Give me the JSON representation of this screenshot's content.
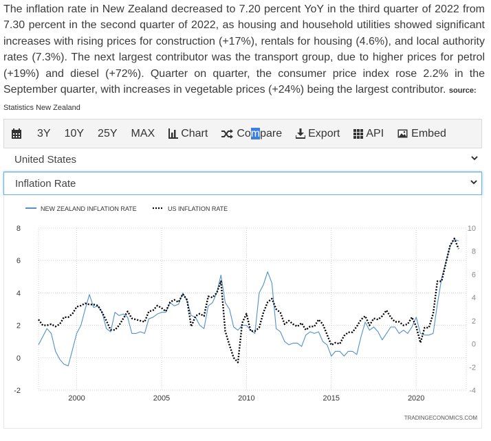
{
  "description": {
    "text": "The inflation rate in New Zealand decreased to 7.20 percent YoY in the third quarter of 2022 from 7.30 percent in the second quarter of 2022, as housing and household utilities showed significant increases with rising prices for construction (+17%), rentals for housing (4.6%), and local authority rates (7.3%). The next largest contributor was the transport group, due to higher prices for petrol (+19%) and diesel (+72%). Quarter on quarter, the consumer price index rose 2.2% in the September quarter, with increases in vegetable prices (+24%) being the largest contributor.",
    "source_label": "source:",
    "source_name": "Statistics New Zealand"
  },
  "toolbar": {
    "items": [
      {
        "label": "3Y"
      },
      {
        "label": "10Y"
      },
      {
        "label": "25Y"
      },
      {
        "label": "MAX"
      },
      {
        "label": "Chart",
        "icon": "bar-chart-icon"
      },
      {
        "label_pre": "Co",
        "label_sel": "m",
        "label_post": "pare",
        "icon": "shuffle-icon"
      },
      {
        "label": "Export",
        "icon": "download-icon"
      },
      {
        "label": "API",
        "icon": "grid-icon"
      },
      {
        "label": "Embed",
        "icon": "image-icon"
      }
    ]
  },
  "country_select": {
    "value": "United States"
  },
  "indicator_select": {
    "value": "Inflation Rate"
  },
  "watermark": "TRADINGECONOMICS.COM",
  "colors": {
    "nz": "#4f8fcc",
    "us": "#000000",
    "grid": "#d0d0d0"
  },
  "chart_data": {
    "type": "line",
    "series": [
      {
        "name": "NEW ZEALAND INFLATION RATE",
        "axis": "left",
        "style": "solid",
        "points": [
          [
            1997.75,
            0.8
          ],
          [
            1998.0,
            1.3
          ],
          [
            1998.25,
            1.8
          ],
          [
            1998.5,
            1.5
          ],
          [
            1998.75,
            0.4
          ],
          [
            1999.0,
            -0.1
          ],
          [
            1999.25,
            -0.4
          ],
          [
            1999.5,
            -0.5
          ],
          [
            1999.75,
            0.5
          ],
          [
            2000.0,
            1.5
          ],
          [
            2000.25,
            2.0
          ],
          [
            2000.5,
            3.0
          ],
          [
            2000.75,
            3.9
          ],
          [
            2001.0,
            3.1
          ],
          [
            2001.25,
            3.2
          ],
          [
            2001.5,
            2.8
          ],
          [
            2001.75,
            1.8
          ],
          [
            2002.0,
            1.6
          ],
          [
            2002.25,
            2.8
          ],
          [
            2002.5,
            2.6
          ],
          [
            2002.75,
            2.7
          ],
          [
            2003.0,
            2.5
          ],
          [
            2003.25,
            1.5
          ],
          [
            2003.5,
            1.5
          ],
          [
            2003.75,
            1.6
          ],
          [
            2004.0,
            1.5
          ],
          [
            2004.25,
            2.4
          ],
          [
            2004.5,
            2.5
          ],
          [
            2004.75,
            2.7
          ],
          [
            2005.0,
            2.8
          ],
          [
            2005.25,
            2.8
          ],
          [
            2005.5,
            3.4
          ],
          [
            2005.75,
            3.2
          ],
          [
            2006.0,
            3.3
          ],
          [
            2006.25,
            4.0
          ],
          [
            2006.5,
            3.5
          ],
          [
            2006.75,
            2.6
          ],
          [
            2007.0,
            2.5
          ],
          [
            2007.25,
            2.0
          ],
          [
            2007.5,
            1.8
          ],
          [
            2007.75,
            3.2
          ],
          [
            2008.0,
            3.4
          ],
          [
            2008.25,
            4.0
          ],
          [
            2008.5,
            5.1
          ],
          [
            2008.75,
            3.4
          ],
          [
            2009.0,
            3.0
          ],
          [
            2009.25,
            1.9
          ],
          [
            2009.5,
            1.7
          ],
          [
            2009.75,
            2.0
          ],
          [
            2010.0,
            2.0
          ],
          [
            2010.25,
            1.7
          ],
          [
            2010.5,
            1.5
          ],
          [
            2010.75,
            4.0
          ],
          [
            2011.0,
            4.5
          ],
          [
            2011.25,
            5.3
          ],
          [
            2011.5,
            4.6
          ],
          [
            2011.75,
            1.8
          ],
          [
            2012.0,
            1.6
          ],
          [
            2012.25,
            1.0
          ],
          [
            2012.5,
            0.8
          ],
          [
            2012.75,
            0.9
          ],
          [
            2013.0,
            0.9
          ],
          [
            2013.25,
            0.7
          ],
          [
            2013.5,
            1.4
          ],
          [
            2013.75,
            1.6
          ],
          [
            2014.0,
            1.5
          ],
          [
            2014.25,
            1.6
          ],
          [
            2014.5,
            1.0
          ],
          [
            2014.75,
            0.8
          ],
          [
            2015.0,
            0.1
          ],
          [
            2015.25,
            0.4
          ],
          [
            2015.5,
            0.4
          ],
          [
            2015.75,
            0.1
          ],
          [
            2016.0,
            0.4
          ],
          [
            2016.25,
            0.4
          ],
          [
            2016.5,
            0.2
          ],
          [
            2016.75,
            1.3
          ],
          [
            2017.0,
            2.2
          ],
          [
            2017.25,
            1.7
          ],
          [
            2017.5,
            1.9
          ],
          [
            2017.75,
            1.6
          ],
          [
            2018.0,
            1.1
          ],
          [
            2018.25,
            1.5
          ],
          [
            2018.5,
            1.9
          ],
          [
            2018.75,
            1.9
          ],
          [
            2019.0,
            1.5
          ],
          [
            2019.25,
            1.7
          ],
          [
            2019.5,
            1.5
          ],
          [
            2019.75,
            1.9
          ],
          [
            2020.0,
            2.5
          ],
          [
            2020.25,
            1.5
          ],
          [
            2020.5,
            1.4
          ],
          [
            2020.75,
            1.4
          ],
          [
            2021.0,
            1.5
          ],
          [
            2021.25,
            3.3
          ],
          [
            2021.5,
            4.9
          ],
          [
            2021.75,
            5.9
          ],
          [
            2022.0,
            6.9
          ],
          [
            2022.25,
            7.3
          ],
          [
            2022.5,
            7.2
          ]
        ]
      },
      {
        "name": "US INFLATION RATE",
        "axis": "right",
        "style": "dotted",
        "points": [
          [
            1997.75,
            2.1
          ],
          [
            1998.0,
            1.6
          ],
          [
            1998.25,
            1.6
          ],
          [
            1998.5,
            1.7
          ],
          [
            1998.75,
            1.5
          ],
          [
            1999.0,
            1.7
          ],
          [
            1999.25,
            2.3
          ],
          [
            1999.5,
            2.3
          ],
          [
            1999.75,
            2.6
          ],
          [
            2000.0,
            3.2
          ],
          [
            2000.25,
            3.3
          ],
          [
            2000.5,
            3.5
          ],
          [
            2000.75,
            3.4
          ],
          [
            2001.0,
            3.4
          ],
          [
            2001.25,
            3.3
          ],
          [
            2001.5,
            2.7
          ],
          [
            2001.75,
            2.0
          ],
          [
            2002.0,
            1.2
          ],
          [
            2002.25,
            1.2
          ],
          [
            2002.5,
            1.6
          ],
          [
            2002.75,
            2.2
          ],
          [
            2003.0,
            2.8
          ],
          [
            2003.25,
            2.2
          ],
          [
            2003.5,
            2.1
          ],
          [
            2003.75,
            2.0
          ],
          [
            2004.0,
            1.9
          ],
          [
            2004.25,
            2.8
          ],
          [
            2004.5,
            2.9
          ],
          [
            2004.75,
            3.3
          ],
          [
            2005.0,
            3.1
          ],
          [
            2005.25,
            2.8
          ],
          [
            2005.5,
            3.6
          ],
          [
            2005.75,
            3.8
          ],
          [
            2006.0,
            3.6
          ],
          [
            2006.25,
            4.3
          ],
          [
            2006.5,
            3.8
          ],
          [
            2006.75,
            1.5
          ],
          [
            2007.0,
            2.4
          ],
          [
            2007.25,
            2.6
          ],
          [
            2007.5,
            2.4
          ],
          [
            2007.75,
            4.1
          ],
          [
            2008.0,
            4.0
          ],
          [
            2008.25,
            4.4
          ],
          [
            2008.5,
            5.4
          ],
          [
            2008.75,
            1.1
          ],
          [
            2009.0,
            -0.1
          ],
          [
            2009.25,
            -1.2
          ],
          [
            2009.5,
            -1.6
          ],
          [
            2009.75,
            1.8
          ],
          [
            2010.0,
            2.6
          ],
          [
            2010.25,
            1.1
          ],
          [
            2010.5,
            1.1
          ],
          [
            2010.75,
            1.4
          ],
          [
            2011.0,
            2.7
          ],
          [
            2011.25,
            3.6
          ],
          [
            2011.5,
            3.9
          ],
          [
            2011.75,
            3.0
          ],
          [
            2012.0,
            2.7
          ],
          [
            2012.25,
            1.7
          ],
          [
            2012.5,
            2.0
          ],
          [
            2012.75,
            1.7
          ],
          [
            2013.0,
            1.5
          ],
          [
            2013.25,
            1.8
          ],
          [
            2013.5,
            1.2
          ],
          [
            2013.75,
            1.5
          ],
          [
            2014.0,
            1.5
          ],
          [
            2014.25,
            2.1
          ],
          [
            2014.5,
            1.7
          ],
          [
            2014.75,
            0.8
          ],
          [
            2015.0,
            -0.1
          ],
          [
            2015.25,
            0.1
          ],
          [
            2015.5,
            0.0
          ],
          [
            2015.75,
            0.7
          ],
          [
            2016.0,
            1.0
          ],
          [
            2016.25,
            1.0
          ],
          [
            2016.5,
            1.5
          ],
          [
            2016.75,
            2.1
          ],
          [
            2017.0,
            2.4
          ],
          [
            2017.25,
            1.6
          ],
          [
            2017.5,
            2.2
          ],
          [
            2017.75,
            2.1
          ],
          [
            2018.0,
            2.4
          ],
          [
            2018.25,
            2.9
          ],
          [
            2018.5,
            2.3
          ],
          [
            2018.75,
            1.9
          ],
          [
            2019.0,
            1.9
          ],
          [
            2019.25,
            1.6
          ],
          [
            2019.5,
            1.7
          ],
          [
            2019.75,
            2.3
          ],
          [
            2020.0,
            1.5
          ],
          [
            2020.25,
            0.1
          ],
          [
            2020.5,
            1.4
          ],
          [
            2020.75,
            1.4
          ],
          [
            2021.0,
            2.6
          ],
          [
            2021.25,
            5.4
          ],
          [
            2021.5,
            5.4
          ],
          [
            2021.75,
            7.0
          ],
          [
            2022.0,
            8.5
          ],
          [
            2022.25,
            9.1
          ],
          [
            2022.5,
            8.2
          ]
        ]
      }
    ],
    "left_axis": {
      "ylim": [
        -2,
        8
      ],
      "ticks": [
        -2,
        0,
        2,
        4,
        6,
        8
      ]
    },
    "right_axis": {
      "ylim": [
        -4,
        10
      ],
      "ticks": [
        -4,
        -2,
        0,
        2,
        4,
        6,
        8,
        10
      ]
    },
    "x_axis": {
      "xlim": [
        1997.75,
        2022.95
      ],
      "ticks": [
        2000,
        2005,
        2010,
        2015,
        2020
      ]
    },
    "grid": true,
    "legend_placement": "top-left"
  }
}
